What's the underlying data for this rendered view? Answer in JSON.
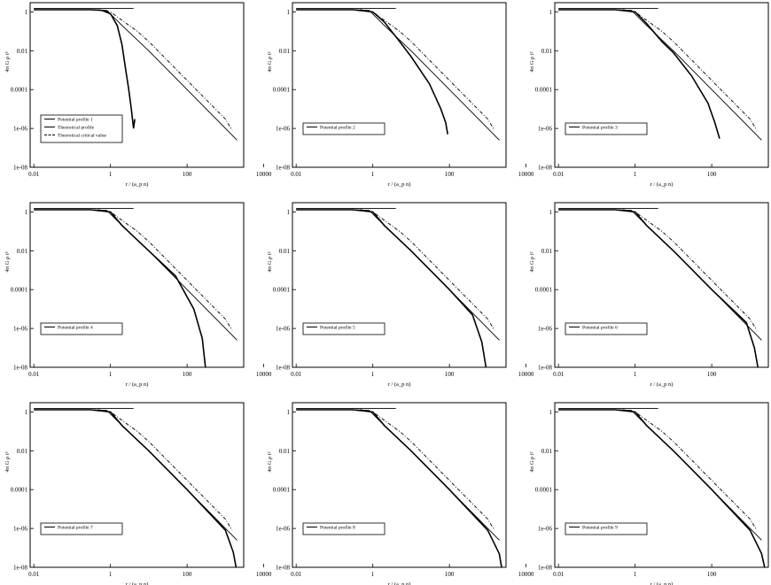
{
  "chart_data": [
    {
      "type": "line",
      "xlabel": "r / (a_p n)",
      "ylabel": "4π G ρ t²",
      "xscale": "log",
      "yscale": "log",
      "xlim": [
        0.008,
        3000
      ],
      "ylim": [
        1e-08,
        3
      ],
      "xticks": [
        "0.01",
        "1",
        "100",
        "10000"
      ],
      "yticks": [
        "1",
        "0.01",
        "0.0001",
        "1e-06",
        "1e-08"
      ],
      "legend_position": "lower-left",
      "series": [
        {
          "name": "Potential profile 1",
          "style": "solid",
          "x": [
            0.01,
            0.3,
            0.6,
            1.0,
            1.5,
            2.0,
            2.5,
            3.0,
            3.5,
            4.0,
            4.3
          ],
          "y": [
            1.3,
            1.3,
            1.2,
            0.8,
            0.2,
            0.02,
            0.001,
            0.0001,
            1e-05,
            1e-06,
            3e-06
          ]
        },
        {
          "name": "Theoretical profile",
          "style": "solid",
          "x": [
            0.01,
            0.3,
            0.8,
            2.0,
            10,
            100,
            1000,
            2000
          ],
          "y": [
            1.3,
            1.3,
            1.2,
            0.2,
            0.01,
            0.0001,
            1e-06,
            2.5e-07
          ]
        },
        {
          "name": "Theoretical critical value",
          "style": "dash-dot",
          "x": [
            0.01,
            0.5,
            1.0,
            5,
            10,
            100,
            1000,
            1500
          ],
          "y": [
            1.3,
            1.3,
            1.0,
            0.1,
            0.03,
            0.0003,
            3e-06,
            8e-07
          ]
        },
        {
          "name": "",
          "style": "solid",
          "x": [
            0.01,
            4.0
          ],
          "y": [
            1.5,
            1.5
          ]
        }
      ]
    },
    {
      "type": "line",
      "xlabel": "r / (a_p n)",
      "ylabel": "4π G ρ t²",
      "xscale": "log",
      "yscale": "log",
      "xlim": [
        0.008,
        3000
      ],
      "ylim": [
        1e-08,
        3
      ],
      "xticks": [
        "0.01",
        "1",
        "100",
        "10000"
      ],
      "yticks": [
        "1",
        "0.01",
        "0.0001",
        "1e-06",
        "1e-08"
      ],
      "legend_position": "lower-left",
      "series": [
        {
          "name": "Potential profile 2",
          "style": "solid",
          "x": [
            0.01,
            0.3,
            1.0,
            2.0,
            5,
            10,
            30,
            60,
            80,
            90
          ],
          "y": [
            1.3,
            1.3,
            1.0,
            0.3,
            0.03,
            0.005,
            0.0002,
            1e-05,
            2e-06,
            5e-07
          ]
        },
        {
          "name": "",
          "style": "solid",
          "x": [
            0.01,
            0.3,
            0.8,
            2.0,
            10,
            100,
            1000,
            2000
          ],
          "y": [
            1.3,
            1.3,
            1.2,
            0.2,
            0.01,
            0.0001,
            1e-06,
            2.5e-07
          ]
        },
        {
          "name": "",
          "style": "dash-dot",
          "x": [
            0.01,
            0.5,
            1.0,
            5,
            10,
            100,
            1000,
            1500
          ],
          "y": [
            1.3,
            1.3,
            1.0,
            0.1,
            0.03,
            0.0003,
            3e-06,
            8e-07
          ]
        },
        {
          "name": "",
          "style": "solid",
          "x": [
            0.01,
            4.0
          ],
          "y": [
            1.5,
            1.5
          ]
        }
      ]
    },
    {
      "type": "line",
      "xlabel": "r / (a_p n)",
      "ylabel": "4π G ρ t²",
      "xscale": "log",
      "yscale": "log",
      "xlim": [
        0.008,
        3000
      ],
      "ylim": [
        1e-08,
        3
      ],
      "xticks": [
        "0.01",
        "1",
        "100",
        "10000"
      ],
      "yticks": [
        "1",
        "0.01",
        "0.0001",
        "1e-06",
        "1e-08"
      ],
      "legend_position": "lower-left",
      "series": [
        {
          "name": "Potential profile 3",
          "style": "solid",
          "x": [
            0.01,
            0.3,
            1.0,
            2.0,
            5,
            10,
            30,
            80,
            120,
            160
          ],
          "y": [
            1.3,
            1.3,
            1.0,
            0.25,
            0.03,
            0.008,
            0.0005,
            2e-05,
            2e-06,
            3e-07
          ]
        },
        {
          "name": "",
          "style": "solid",
          "x": [
            0.01,
            0.3,
            0.8,
            2.0,
            10,
            100,
            1000,
            2000
          ],
          "y": [
            1.3,
            1.3,
            1.2,
            0.2,
            0.01,
            0.0001,
            1e-06,
            2.5e-07
          ]
        },
        {
          "name": "",
          "style": "dash-dot",
          "x": [
            0.01,
            0.5,
            1.0,
            5,
            10,
            100,
            1000,
            1500
          ],
          "y": [
            1.3,
            1.3,
            1.0,
            0.1,
            0.03,
            0.0003,
            3e-06,
            8e-07
          ]
        },
        {
          "name": "",
          "style": "solid",
          "x": [
            0.01,
            4.0
          ],
          "y": [
            1.5,
            1.5
          ]
        }
      ]
    },
    {
      "type": "line",
      "xlabel": "r / (a_p n)",
      "ylabel": "4π G ρ t²",
      "xscale": "log",
      "yscale": "log",
      "xlim": [
        0.008,
        3000
      ],
      "ylim": [
        1e-08,
        3
      ],
      "xticks": [
        "0.01",
        "1",
        "100",
        "10000"
      ],
      "yticks": [
        "1",
        "0.01",
        "0.0001",
        "1e-06",
        "1e-08"
      ],
      "legend_position": "lower-left",
      "series": [
        {
          "name": "Potential profile 4",
          "style": "solid",
          "x": [
            0.01,
            0.3,
            1.0,
            2.0,
            10,
            50,
            150,
            250,
            300
          ],
          "y": [
            1.3,
            1.3,
            1.0,
            0.2,
            0.01,
            0.0005,
            1e-05,
            3e-07,
            1e-08
          ]
        },
        {
          "name": "",
          "style": "solid",
          "x": [
            0.01,
            0.3,
            0.8,
            2.0,
            10,
            100,
            1000,
            2000
          ],
          "y": [
            1.3,
            1.3,
            1.2,
            0.2,
            0.01,
            0.0001,
            1e-06,
            2.5e-07
          ]
        },
        {
          "name": "",
          "style": "dash-dot",
          "x": [
            0.01,
            0.5,
            1.0,
            5,
            10,
            100,
            1000,
            1500
          ],
          "y": [
            1.3,
            1.3,
            1.0,
            0.1,
            0.03,
            0.0003,
            3e-06,
            8e-07
          ]
        },
        {
          "name": "",
          "style": "solid",
          "x": [
            0.01,
            4.0
          ],
          "y": [
            1.5,
            1.5
          ]
        }
      ]
    },
    {
      "type": "line",
      "xlabel": "r / (a_p n)",
      "ylabel": "4π G ρ t²",
      "xscale": "log",
      "yscale": "log",
      "xlim": [
        0.008,
        3000
      ],
      "ylim": [
        1e-08,
        3
      ],
      "xticks": [
        "0.01",
        "1",
        "100",
        "10000"
      ],
      "yticks": [
        "1",
        "0.01",
        "0.0001",
        "1e-06",
        "1e-08"
      ],
      "legend_position": "lower-left",
      "series": [
        {
          "name": "Potential profile 5",
          "style": "solid",
          "x": [
            0.01,
            0.3,
            1.0,
            2.0,
            10,
            100,
            400,
            700,
            900
          ],
          "y": [
            1.3,
            1.3,
            1.0,
            0.2,
            0.01,
            0.0001,
            5e-06,
            2e-07,
            1e-08
          ]
        },
        {
          "name": "",
          "style": "solid",
          "x": [
            0.01,
            0.3,
            0.8,
            2.0,
            10,
            100,
            1000,
            2000
          ],
          "y": [
            1.3,
            1.3,
            1.2,
            0.2,
            0.01,
            0.0001,
            1e-06,
            2.5e-07
          ]
        },
        {
          "name": "",
          "style": "dash-dot",
          "x": [
            0.01,
            0.5,
            1.0,
            5,
            10,
            100,
            1000,
            1500
          ],
          "y": [
            1.3,
            1.3,
            1.0,
            0.1,
            0.03,
            0.0003,
            3e-06,
            8e-07
          ]
        },
        {
          "name": "",
          "style": "solid",
          "x": [
            0.01,
            4.0
          ],
          "y": [
            1.5,
            1.5
          ]
        }
      ]
    },
    {
      "type": "line",
      "xlabel": "r / (a_p n)",
      "ylabel": "4π G ρ t²",
      "xscale": "log",
      "yscale": "log",
      "xlim": [
        0.008,
        3000
      ],
      "ylim": [
        1e-08,
        3
      ],
      "xticks": [
        "0.01",
        "1",
        "100",
        "10000"
      ],
      "yticks": [
        "1",
        "0.01",
        "0.0001",
        "1e-06",
        "1e-08"
      ],
      "legend_position": "lower-left",
      "series": [
        {
          "name": "Potential profile 6",
          "style": "solid",
          "x": [
            0.01,
            0.3,
            1.0,
            2.0,
            10,
            100,
            800,
            1300,
            1600
          ],
          "y": [
            1.3,
            1.3,
            1.0,
            0.2,
            0.01,
            0.0001,
            2e-06,
            1e-07,
            1e-08
          ]
        },
        {
          "name": "",
          "style": "solid",
          "x": [
            0.01,
            0.3,
            0.8,
            2.0,
            10,
            100,
            1000,
            2000
          ],
          "y": [
            1.3,
            1.3,
            1.2,
            0.2,
            0.01,
            0.0001,
            1e-06,
            2.5e-07
          ]
        },
        {
          "name": "",
          "style": "dash-dot",
          "x": [
            0.01,
            0.5,
            1.0,
            5,
            10,
            100,
            1000,
            1500
          ],
          "y": [
            1.3,
            1.3,
            1.0,
            0.1,
            0.03,
            0.0003,
            3e-06,
            8e-07
          ]
        },
        {
          "name": "",
          "style": "solid",
          "x": [
            0.01,
            4.0
          ],
          "y": [
            1.5,
            1.5
          ]
        }
      ]
    },
    {
      "type": "line",
      "xlabel": "r / (a_p n)",
      "ylabel": "4π G ρ t²",
      "xscale": "log",
      "yscale": "log",
      "xlim": [
        0.008,
        3000
      ],
      "ylim": [
        1e-08,
        3
      ],
      "xticks": [
        "0.01",
        "1",
        "100",
        "10000"
      ],
      "yticks": [
        "1",
        "0.01",
        "0.0001",
        "1e-06",
        "1e-08"
      ],
      "legend_position": "lower-left",
      "series": [
        {
          "name": "Potential profile 7",
          "style": "solid",
          "x": [
            0.01,
            0.3,
            1.0,
            2.0,
            10,
            100,
            1000,
            1600,
            1900
          ],
          "y": [
            1.3,
            1.3,
            1.0,
            0.2,
            0.01,
            0.0001,
            8e-07,
            6e-08,
            1e-08
          ]
        },
        {
          "name": "",
          "style": "solid",
          "x": [
            0.01,
            0.3,
            0.8,
            2.0,
            10,
            100,
            1000,
            2000
          ],
          "y": [
            1.3,
            1.3,
            1.2,
            0.2,
            0.01,
            0.0001,
            1e-06,
            2.5e-07
          ]
        },
        {
          "name": "",
          "style": "dash-dot",
          "x": [
            0.01,
            0.5,
            1.0,
            5,
            10,
            100,
            1000,
            1500
          ],
          "y": [
            1.3,
            1.3,
            1.0,
            0.1,
            0.03,
            0.0003,
            3e-06,
            8e-07
          ]
        },
        {
          "name": "",
          "style": "solid",
          "x": [
            0.01,
            4.0
          ],
          "y": [
            1.5,
            1.5
          ]
        }
      ]
    },
    {
      "type": "line",
      "xlabel": "r / (a_p n)",
      "ylabel": "4π G ρ t²",
      "xscale": "log",
      "yscale": "log",
      "xlim": [
        0.008,
        3000
      ],
      "ylim": [
        1e-08,
        3
      ],
      "xticks": [
        "0.01",
        "1",
        "100",
        "10000"
      ],
      "yticks": [
        "1",
        "0.01",
        "0.0001",
        "1e-06",
        "1e-08"
      ],
      "legend_position": "lower-left",
      "series": [
        {
          "name": "Potential profile 8",
          "style": "solid",
          "x": [
            0.01,
            0.3,
            1.0,
            2.0,
            10,
            100,
            1000,
            2000,
            2300
          ],
          "y": [
            1.3,
            1.3,
            1.0,
            0.2,
            0.01,
            0.0001,
            8e-07,
            5e-08,
            1e-08
          ]
        },
        {
          "name": "",
          "style": "solid",
          "x": [
            0.01,
            0.3,
            0.8,
            2.0,
            10,
            100,
            1000,
            2000
          ],
          "y": [
            1.3,
            1.3,
            1.2,
            0.2,
            0.01,
            0.0001,
            1e-06,
            2.5e-07
          ]
        },
        {
          "name": "",
          "style": "dash-dot",
          "x": [
            0.01,
            0.5,
            1.0,
            5,
            10,
            100,
            1000,
            1500
          ],
          "y": [
            1.3,
            1.3,
            1.0,
            0.1,
            0.03,
            0.0003,
            3e-06,
            8e-07
          ]
        },
        {
          "name": "",
          "style": "solid",
          "x": [
            0.01,
            4.0
          ],
          "y": [
            1.5,
            1.5
          ]
        }
      ]
    },
    {
      "type": "line",
      "xlabel": "r / (a_p n)",
      "ylabel": "4π G ρ t²",
      "xscale": "log",
      "yscale": "log",
      "xlim": [
        0.008,
        3000
      ],
      "ylim": [
        1e-08,
        3
      ],
      "xticks": [
        "0.01",
        "1",
        "100",
        "10000"
      ],
      "yticks": [
        "1",
        "0.01",
        "0.0001",
        "1e-06",
        "1e-08"
      ],
      "legend_position": "lower-left",
      "series": [
        {
          "name": "Potential profile 9",
          "style": "solid",
          "x": [
            0.01,
            0.3,
            1.0,
            2.0,
            10,
            100,
            1000,
            2000,
            2400
          ],
          "y": [
            1.3,
            1.3,
            1.0,
            0.2,
            0.01,
            0.0001,
            8e-07,
            5e-08,
            1e-08
          ]
        },
        {
          "name": "",
          "style": "solid",
          "x": [
            0.01,
            0.3,
            0.8,
            2.0,
            10,
            100,
            1000,
            2000
          ],
          "y": [
            1.3,
            1.3,
            1.2,
            0.2,
            0.01,
            0.0001,
            1e-06,
            2.5e-07
          ]
        },
        {
          "name": "",
          "style": "dash-dot",
          "x": [
            0.01,
            0.5,
            1.0,
            5,
            10,
            100,
            1000,
            1500
          ],
          "y": [
            1.3,
            1.3,
            1.0,
            0.1,
            0.03,
            0.0003,
            3e-06,
            8e-07
          ]
        },
        {
          "name": "",
          "style": "solid",
          "x": [
            0.01,
            4.0
          ],
          "y": [
            1.5,
            1.5
          ]
        }
      ]
    }
  ]
}
